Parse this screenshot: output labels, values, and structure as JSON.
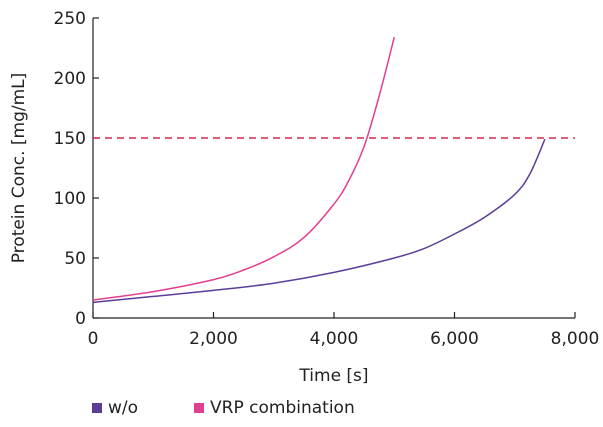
{
  "chart_data": {
    "type": "line",
    "xlabel": "Time [s]",
    "ylabel": "Protein Conc. [mg/mL]",
    "xlim": [
      0,
      8000
    ],
    "ylim": [
      0,
      250
    ],
    "x_ticks": [
      0,
      2000,
      4000,
      6000,
      8000
    ],
    "x_tick_labels": [
      "0",
      "2,000",
      "4,000",
      "6,000",
      "8,000"
    ],
    "y_ticks": [
      0,
      50,
      100,
      150,
      200,
      250
    ],
    "y_tick_labels": [
      "0",
      "50",
      "100",
      "150",
      "200",
      "250"
    ],
    "grid": false,
    "legend_position": "bottom",
    "series": [
      {
        "name": "w/o",
        "color": "#5b3d9a",
        "x": [
          0,
          1000,
          2000,
          3000,
          4000,
          5000,
          5500,
          6000,
          6500,
          7000,
          7250,
          7500
        ],
        "y": [
          13,
          18,
          23,
          29,
          38,
          50,
          58,
          70,
          84,
          103,
          120,
          149
        ]
      },
      {
        "name": "VRP combination",
        "color": "#e0408f",
        "x": [
          0,
          1000,
          2000,
          2500,
          3000,
          3500,
          4000,
          4250,
          4500,
          4750,
          5000
        ],
        "y": [
          15,
          22,
          32,
          40,
          51,
          67,
          95,
          115,
          143,
          185,
          234
        ]
      }
    ],
    "reference_lines": [
      {
        "axis": "y",
        "value": 150,
        "style": "dashed",
        "color": "#d62a4a"
      }
    ]
  }
}
